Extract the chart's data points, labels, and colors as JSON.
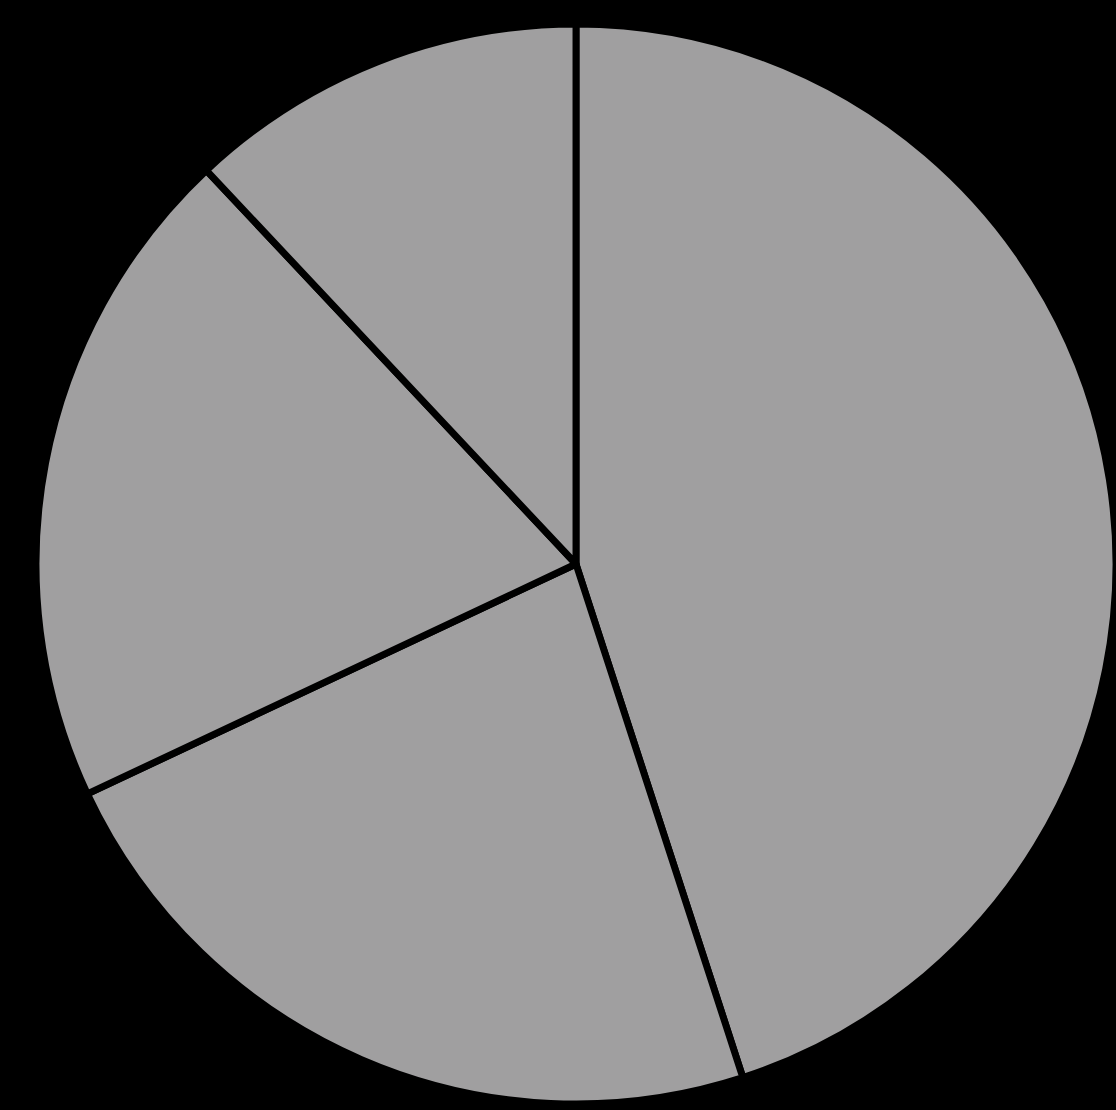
{
  "chart_data": {
    "type": "pie",
    "categories": [
      null,
      null,
      null,
      null
    ],
    "values": [
      45,
      23,
      20,
      12
    ],
    "colors": [
      "#a09fa0",
      "#a09fa0",
      "#a09fa0",
      "#a09fa0"
    ]
  }
}
